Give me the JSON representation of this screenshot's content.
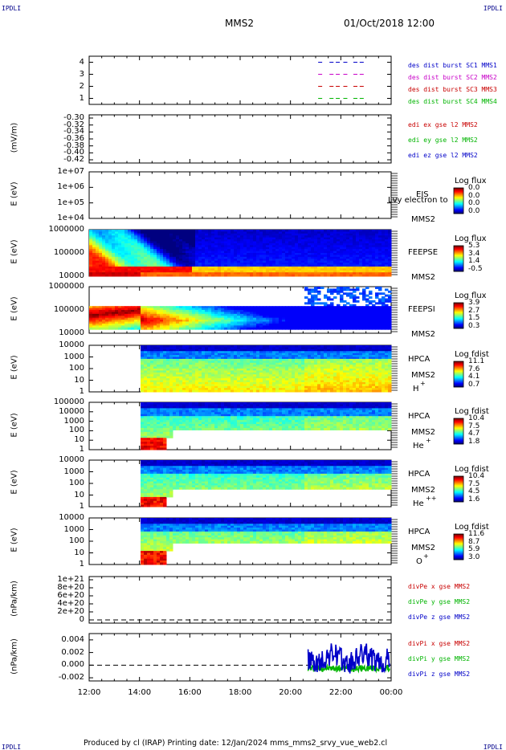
{
  "header": {
    "left_tag": "IPDLI",
    "right_tag": "IPDLI",
    "spacecraft": "MMS2",
    "datetime": "01/Oct/2018 12:00"
  },
  "footer": {
    "left_tag": "IPDLI",
    "right_tag": "IPDLI",
    "text": "Produced by cl (IRAP)    Printing date: 12/Jan/2024    mms_mms2_srvy_vue_web2.cl"
  },
  "x_axis": {
    "ticks": [
      "12:00",
      "14:00",
      "16:00",
      "18:00",
      "20:00",
      "22:00",
      "00:00"
    ]
  },
  "colors": {
    "blue": "#0000c8",
    "red": "#c80000",
    "magenta": "#c800c8",
    "green": "#00b400"
  },
  "chart_data": [
    {
      "id": "burst",
      "type": "line",
      "yticks": [
        "4",
        "3",
        "2",
        "1"
      ],
      "ylim": [
        0.5,
        4.5
      ],
      "series": [
        {
          "name": "des dist burst SC1 MMS1",
          "color": "#0000c8",
          "y": 4
        },
        {
          "name": "des dist burst SC2 MMS2",
          "color": "#c800c8",
          "y": 3
        },
        {
          "name": "des dist burst SC3 MMS3",
          "color": "#c80000",
          "y": 2
        },
        {
          "name": "des dist burst SC4 MMS4",
          "color": "#00b400",
          "y": 1
        }
      ]
    },
    {
      "id": "edi",
      "type": "line",
      "ylabel": "(mV/m)",
      "yticks": [
        "-0.30",
        "-0.32",
        "-0.34",
        "-0.36",
        "-0.38",
        "-0.40",
        "-0.42"
      ],
      "series": [
        {
          "name": "edi ex gse l2 MMS2",
          "color": "#c80000"
        },
        {
          "name": "edi ey gse l2 MMS2",
          "color": "#00b400"
        },
        {
          "name": "edi ez gse l2 MMS2",
          "color": "#0000c8"
        }
      ]
    },
    {
      "id": "eis",
      "type": "heatmap",
      "ylabel": "E (eV)",
      "yticks": [
        "1e+07",
        "1e+06",
        "1e+05",
        "1e+04"
      ],
      "instrument": "EIS",
      "subtitle": "MMS2",
      "overlay_text": "Lvy electron to",
      "colorbar": {
        "title": "Log flux",
        "labels": [
          "0.0",
          "0.0",
          "0.0",
          "0.0"
        ]
      }
    },
    {
      "id": "feepse",
      "type": "heatmap",
      "ylabel": "E (eV)",
      "yticks": [
        "1000000",
        "100000",
        "10000"
      ],
      "instrument": "FEEPSE",
      "subtitle": "MMS2",
      "colorbar": {
        "title": "Log flux",
        "labels": [
          "5.3",
          "3.4",
          "1.4",
          "-0.5"
        ]
      }
    },
    {
      "id": "feepsi",
      "type": "heatmap",
      "ylabel": "E (eV)",
      "yticks": [
        "1000000",
        "100000",
        "10000"
      ],
      "instrument": "FEEPSI",
      "subtitle": "MMS2",
      "colorbar": {
        "title": "Log flux",
        "labels": [
          "3.9",
          "2.7",
          "1.5",
          "0.3"
        ]
      }
    },
    {
      "id": "hpca_h",
      "type": "heatmap",
      "ylabel": "E (eV)",
      "yticks": [
        "10000",
        "1000",
        "100",
        "10",
        "1"
      ],
      "instrument": "HPCA",
      "subtitle": "MMS2",
      "species": "H",
      "species_sup": "+",
      "colorbar": {
        "title": "Log fdist",
        "labels": [
          "11.1",
          "7.6",
          "4.1",
          "0.7"
        ]
      }
    },
    {
      "id": "hpca_he",
      "type": "heatmap",
      "ylabel": "E (eV)",
      "yticks": [
        "100000",
        "10000",
        "1000",
        "100",
        "10",
        "1"
      ],
      "instrument": "HPCA",
      "subtitle": "MMS2",
      "species": "He",
      "species_sup": "+",
      "colorbar": {
        "title": "Log fdist",
        "labels": [
          "10.4",
          "7.5",
          "4.7",
          "1.8"
        ]
      }
    },
    {
      "id": "hpca_hepp",
      "type": "heatmap",
      "ylabel": "E (eV)",
      "yticks": [
        "10000",
        "1000",
        "100",
        "10",
        "1"
      ],
      "instrument": "HPCA",
      "subtitle": "MMS2",
      "species": "He",
      "species_sup": "++",
      "colorbar": {
        "title": "Log fdist",
        "labels": [
          "10.4",
          "7.5",
          "4.5",
          "1.6"
        ]
      }
    },
    {
      "id": "hpca_o",
      "type": "heatmap",
      "ylabel": "E (eV)",
      "yticks": [
        "10000",
        "1000",
        "100",
        "10",
        "1"
      ],
      "instrument": "HPCA",
      "subtitle": "MMS2",
      "species": "O",
      "species_sup": "+",
      "colorbar": {
        "title": "Log fdist",
        "labels": [
          "11.6",
          "8.7",
          "5.9",
          "3.0"
        ]
      }
    },
    {
      "id": "divpe",
      "type": "line",
      "ylabel": "(nPa/km)",
      "yticks": [
        "1e+21",
        "8e+20",
        "6e+20",
        "4e+20",
        "2e+20",
        "0"
      ],
      "series": [
        {
          "name": "divPe x gse MMS2",
          "color": "#c80000"
        },
        {
          "name": "divPe y gse MMS2",
          "color": "#00b400"
        },
        {
          "name": "divPe z gse MMS2",
          "color": "#0000c8"
        }
      ]
    },
    {
      "id": "divpi",
      "type": "line",
      "ylabel": "(nPa/km)",
      "yticks": [
        "0.004",
        "0.002",
        "0.000",
        "-0.002"
      ],
      "ylim": [
        -0.0025,
        0.005
      ],
      "series": [
        {
          "name": "divPi x gse MMS2",
          "color": "#c80000"
        },
        {
          "name": "divPi y gse MMS2",
          "color": "#00b400"
        },
        {
          "name": "divPi z gse MMS2",
          "color": "#0000c8"
        }
      ]
    }
  ]
}
